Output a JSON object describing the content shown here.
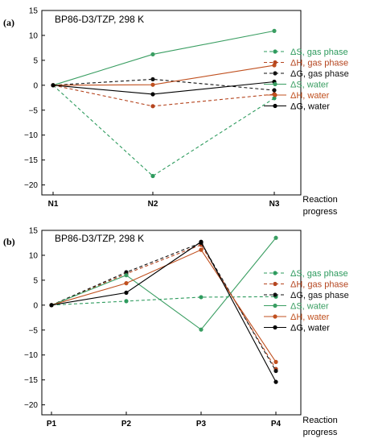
{
  "chart_data": [
    {
      "type": "line",
      "panel_label": "(a)",
      "title": "BP86-D3/TZP, 298 K",
      "categories": [
        "N1",
        "N2",
        "N3"
      ],
      "xlabel": "Reaction progress",
      "ylabel": "",
      "ylim": [
        -22,
        15
      ],
      "yticks": [
        15,
        10,
        5,
        0,
        -5,
        -10,
        -15,
        -20
      ],
      "legend_position": "right",
      "series": [
        {
          "name": "ΔS, gas phase",
          "color": "#2e9b5e",
          "dashed": true,
          "values": [
            0,
            -18.2,
            -2.6
          ]
        },
        {
          "name": "ΔH, gas phase",
          "color": "#b5451f",
          "dashed": true,
          "values": [
            0,
            -4.2,
            -1.8
          ]
        },
        {
          "name": "ΔG, gas phase",
          "color": "#111111",
          "dashed": true,
          "values": [
            0,
            1.2,
            -1.0
          ]
        },
        {
          "name": "ΔS, water",
          "color": "#3a9e62",
          "dashed": false,
          "values": [
            0,
            6.2,
            10.9
          ]
        },
        {
          "name": "ΔH, water",
          "color": "#c0501f",
          "dashed": false,
          "values": [
            0,
            0.1,
            4.0
          ]
        },
        {
          "name": "ΔG, water",
          "color": "#000000",
          "dashed": false,
          "values": [
            0,
            -1.8,
            0.7
          ]
        }
      ]
    },
    {
      "type": "line",
      "panel_label": "(b)",
      "title": "BP86-D3/TZP, 298 K",
      "categories": [
        "P1",
        "P2",
        "P3",
        "P4"
      ],
      "xlabel": "Reaction progress",
      "ylabel": "",
      "ylim": [
        -22,
        15
      ],
      "yticks": [
        15,
        10,
        5,
        0,
        -5,
        -10,
        -15,
        -20
      ],
      "legend_position": "right",
      "series": [
        {
          "name": "ΔS, gas phase",
          "color": "#2e9b5e",
          "dashed": true,
          "values": [
            0,
            0.8,
            1.6,
            1.7
          ]
        },
        {
          "name": "ΔH, gas phase",
          "color": "#b5451f",
          "dashed": true,
          "values": [
            0,
            6.3,
            12.1,
            -12.8
          ]
        },
        {
          "name": "ΔG, gas phase",
          "color": "#111111",
          "dashed": true,
          "values": [
            0,
            6.6,
            12.5,
            -13.2
          ]
        },
        {
          "name": "ΔS, water",
          "color": "#3a9e62",
          "dashed": false,
          "values": [
            0,
            6.0,
            -4.9,
            13.5
          ]
        },
        {
          "name": "ΔH, water",
          "color": "#c0501f",
          "dashed": false,
          "values": [
            0,
            4.4,
            11.1,
            -11.4
          ]
        },
        {
          "name": "ΔG, water",
          "color": "#000000",
          "dashed": false,
          "values": [
            0,
            2.5,
            12.7,
            -15.4
          ]
        }
      ]
    }
  ]
}
